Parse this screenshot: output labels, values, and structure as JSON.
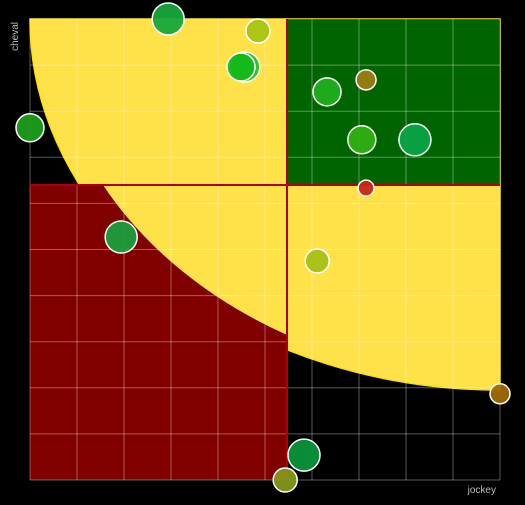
{
  "chart_data": {
    "type": "scatter",
    "x_label": "jockey",
    "y_label": "cheval",
    "x": [
      2.94,
      4.85,
      4.57,
      4.49,
      0,
      6.32,
      7.15,
      7.06,
      8.19,
      7.15,
      1.94,
      6.11,
      10,
      5.83,
      5.43
    ],
    "values": [
      10,
      9.74,
      8.96,
      8.96,
      7.64,
      8.42,
      8.68,
      7.38,
      7.38,
      6.33,
      5.27,
      4.75,
      1.87,
      0.54,
      0
    ],
    "sizes": [
      16,
      12,
      15,
      14,
      14,
      14,
      10,
      14,
      16,
      8,
      16,
      12,
      10,
      16,
      12
    ],
    "colors": [
      "#17a63c",
      "#a8c412",
      "#22c02a",
      "#14b818",
      "#1c9e1c",
      "#1fae1c",
      "#9a7c10",
      "#2fb012",
      "#08a444",
      "#c42818",
      "#1a9e3c",
      "#a8c018",
      "#a06a04",
      "#0a943a",
      "#86961a"
    ],
    "xlim": [
      0,
      10
    ],
    "ylim": [
      0,
      10
    ],
    "xticks": [
      0,
      1,
      2,
      3,
      4,
      5,
      6,
      7,
      8,
      9,
      10
    ],
    "yticks": [
      0,
      1,
      2,
      3,
      4,
      5,
      6,
      7,
      8,
      9,
      10
    ],
    "grid": true
  }
}
